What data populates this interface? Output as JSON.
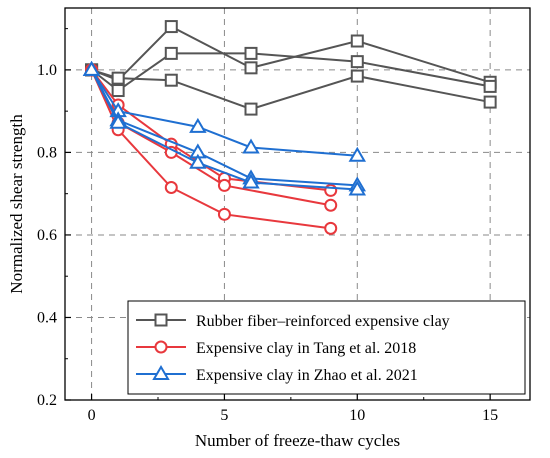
{
  "chart_data": {
    "type": "line",
    "xlabel": "Number of freeze-thaw cycles",
    "ylabel": "Normalized shear strength",
    "xlim": [
      -1,
      16.5
    ],
    "ylim": [
      0.2,
      1.15
    ],
    "xticks": [
      0,
      5,
      10,
      15
    ],
    "yticks": [
      0.2,
      0.4,
      0.6,
      0.8,
      1.0
    ],
    "ytick_labels": [
      "0.2",
      "0.4",
      "0.6",
      "0.8",
      "1.0"
    ],
    "grid": "dashed",
    "legend_position": "bottom-right",
    "legend": [
      {
        "label": "Rubber fiber–reinforced expensive clay",
        "color": "#555555",
        "marker": "square"
      },
      {
        "label": "Expensive clay in Tang et al. 2018",
        "color": "#e8383d",
        "marker": "circle"
      },
      {
        "label": "Expensive clay in Zhao et al. 2021",
        "color": "#1f6fd1",
        "marker": "triangle"
      }
    ],
    "series": [
      {
        "group": 0,
        "x": [
          0,
          1,
          3,
          6,
          10,
          15
        ],
        "y": [
          1.0,
          0.975,
          1.105,
          1.005,
          1.07,
          0.97
        ]
      },
      {
        "group": 0,
        "x": [
          0,
          1,
          3,
          6,
          10,
          15
        ],
        "y": [
          1.0,
          0.95,
          1.04,
          1.04,
          1.02,
          0.96
        ]
      },
      {
        "group": 0,
        "x": [
          0,
          1,
          3,
          6,
          10,
          15
        ],
        "y": [
          1.0,
          0.98,
          0.975,
          0.905,
          0.985,
          0.922
        ]
      },
      {
        "group": 1,
        "x": [
          0,
          1,
          3,
          5,
          9
        ],
        "y": [
          1.0,
          0.915,
          0.82,
          0.737,
          0.708
        ]
      },
      {
        "group": 1,
        "x": [
          0,
          1,
          3,
          5,
          9
        ],
        "y": [
          1.0,
          0.872,
          0.8,
          0.72,
          0.672
        ]
      },
      {
        "group": 1,
        "x": [
          0,
          1,
          3,
          5,
          9
        ],
        "y": [
          1.0,
          0.855,
          0.715,
          0.65,
          0.616
        ]
      },
      {
        "group": 2,
        "x": [
          0,
          1,
          4,
          6,
          10
        ],
        "y": [
          1.0,
          0.9,
          0.862,
          0.812,
          0.792
        ]
      },
      {
        "group": 2,
        "x": [
          0,
          1,
          4,
          6,
          10
        ],
        "y": [
          1.0,
          0.878,
          0.8,
          0.737,
          0.72
        ]
      },
      {
        "group": 2,
        "x": [
          0,
          1,
          4,
          6,
          10
        ],
        "y": [
          1.0,
          0.872,
          0.775,
          0.727,
          0.71
        ]
      }
    ]
  }
}
